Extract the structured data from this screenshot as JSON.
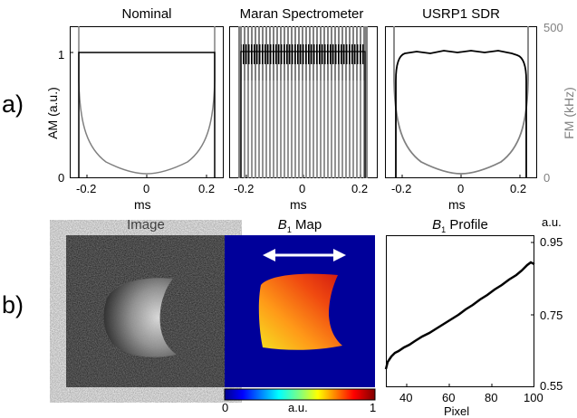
{
  "figure": {
    "label_a": "a)",
    "label_b": "b)"
  },
  "row_a": {
    "y_left_label": "AM (a.u.)",
    "y_right_label": "FM (kHz)",
    "y_left_ticks": [
      "0",
      "1"
    ],
    "y_right_ticks": [
      "0",
      "500"
    ],
    "x_label": "ms",
    "x_ticks": [
      "-0.2",
      "0",
      "0.2"
    ],
    "panels": [
      {
        "title": "Nominal"
      },
      {
        "title": "Maran Spectrometer"
      },
      {
        "title": "USRP1 SDR"
      }
    ]
  },
  "row_b": {
    "image_title": "Image",
    "map_title_main": "B",
    "map_title_sub": "1",
    "map_title_rest": " Map",
    "colorbar_ticks": [
      "0",
      "a.u.",
      "1"
    ],
    "profile_title_main": "B",
    "profile_title_sub": "1",
    "profile_title_rest": " Profile",
    "profile_unit": "a.u.",
    "profile_y_ticks": [
      "0.95",
      "0.75",
      "0.55"
    ],
    "profile_x_ticks": [
      "40",
      "60",
      "80",
      "100"
    ],
    "profile_x_label": "Pixel"
  },
  "chart_data": [
    {
      "type": "line",
      "title": "Nominal",
      "xlabel": "ms",
      "ylabel": "AM (a.u.)",
      "ylabel_right": "FM (kHz)",
      "xlim": [
        -0.27,
        0.27
      ],
      "ylim_left": [
        0,
        1.15
      ],
      "ylim_right": [
        0,
        500
      ],
      "series": [
        {
          "name": "AM",
          "color": "#000000",
          "x": [
            -0.25,
            -0.25,
            0.25,
            0.25
          ],
          "y": [
            0,
            1,
            1,
            0
          ]
        },
        {
          "name": "FM",
          "color": "#808080",
          "x": [
            -0.25,
            -0.24,
            -0.2,
            -0.15,
            -0.1,
            -0.05,
            0,
            0.05,
            0.1,
            0.15,
            0.2,
            0.24,
            0.25
          ],
          "y": [
            500,
            190,
            95,
            65,
            45,
            30,
            20,
            30,
            45,
            65,
            95,
            190,
            500
          ]
        }
      ]
    },
    {
      "type": "line",
      "title": "Maran Spectrometer",
      "xlabel": "ms",
      "xlim": [
        -0.27,
        0.27
      ],
      "series": [
        {
          "name": "AM",
          "color": "#000000",
          "x": [
            -0.24,
            0.24
          ],
          "y": [
            1.0,
            1.0
          ]
        },
        {
          "name": "FM",
          "color": "#808080",
          "x": [
            -0.24,
            0.24
          ],
          "y": [
            500,
            500
          ]
        }
      ]
    },
    {
      "type": "line",
      "title": "USRP1 SDR",
      "xlabel": "ms",
      "xlim": [
        -0.27,
        0.27
      ],
      "series": [
        {
          "name": "AM",
          "color": "#000000",
          "x": [
            -0.25,
            -0.23,
            -0.2,
            0,
            0.2,
            0.23,
            0.25
          ],
          "y": [
            0,
            0.95,
            1.0,
            1.0,
            1.0,
            0.95,
            0
          ]
        },
        {
          "name": "FM",
          "color": "#808080",
          "x": [
            -0.25,
            -0.24,
            -0.2,
            -0.15,
            -0.1,
            -0.05,
            0,
            0.05,
            0.1,
            0.15,
            0.2,
            0.24,
            0.25
          ],
          "y": [
            500,
            190,
            95,
            65,
            45,
            30,
            20,
            30,
            45,
            65,
            95,
            190,
            500
          ]
        }
      ]
    },
    {
      "type": "line",
      "title": "B1 Profile",
      "xlabel": "Pixel",
      "ylabel": "a.u.",
      "xlim": [
        30,
        100
      ],
      "ylim": [
        0.55,
        0.95
      ],
      "series": [
        {
          "color": "#000000",
          "x": [
            30,
            32,
            35,
            40,
            45,
            50,
            55,
            60,
            65,
            70,
            75,
            80,
            85,
            90,
            95,
            98,
            100
          ],
          "y": [
            0.57,
            0.62,
            0.63,
            0.65,
            0.67,
            0.69,
            0.71,
            0.735,
            0.755,
            0.775,
            0.795,
            0.815,
            0.835,
            0.855,
            0.87,
            0.88,
            0.875
          ]
        }
      ]
    }
  ]
}
